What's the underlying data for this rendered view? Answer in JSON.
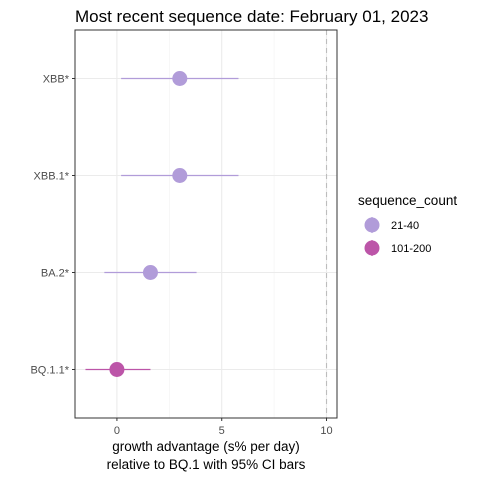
{
  "chart_data": {
    "type": "scatter",
    "title": "Most recent sequence date: February 01, 2023",
    "xlabel_lines": [
      "growth advantage (s% per day)",
      "relative to  BQ.1  with 95% CI bars"
    ],
    "ylabel": "",
    "xlim": [
      -2.0,
      10.5
    ],
    "x_ticks": [
      0,
      5,
      10
    ],
    "x_tick_labels": [
      "0",
      "5",
      "10"
    ],
    "reference_line_x": 10,
    "grid": true,
    "categories": [
      "XBB*",
      "XBB.1*",
      "BA.2*",
      "BQ.1.1*"
    ],
    "points": [
      {
        "label": "XBB*",
        "x": 3.0,
        "ci_low": 0.2,
        "ci_high": 5.8,
        "group": "21-40"
      },
      {
        "label": "XBB.1*",
        "x": 3.0,
        "ci_low": 0.2,
        "ci_high": 5.8,
        "group": "21-40"
      },
      {
        "label": "BA.2*",
        "x": 1.6,
        "ci_low": -0.6,
        "ci_high": 3.8,
        "group": "21-40"
      },
      {
        "label": "BQ.1.1*",
        "x": 0.0,
        "ci_low": -1.5,
        "ci_high": 1.6,
        "group": "101-200"
      }
    ],
    "legend": {
      "title": "sequence_count",
      "placement": "right",
      "entries": [
        {
          "label": "21-40",
          "color": "#b19cd9"
        },
        {
          "label": "101-200",
          "color": "#bc55a8"
        }
      ]
    }
  }
}
